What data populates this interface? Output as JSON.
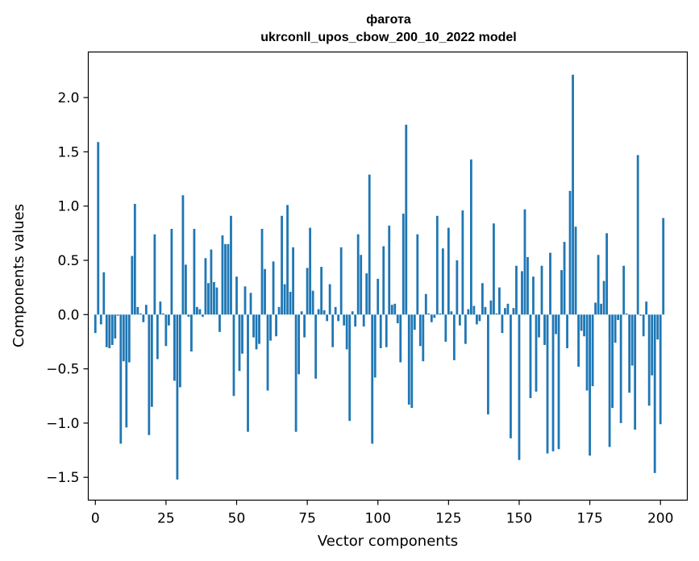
{
  "chart_data": {
    "type": "bar",
    "title": "фагота",
    "subtitle": "ukrconll_upos_cbow_200_10_2022 model",
    "xlabel": "Vector components",
    "ylabel": "Components values",
    "xlim": [
      -2.5,
      209.5
    ],
    "ylim": [
      -1.71,
      2.42
    ],
    "xticks": [
      0,
      25,
      50,
      75,
      100,
      125,
      150,
      175,
      200
    ],
    "yticks": [
      -1.5,
      -1.0,
      -0.5,
      0.0,
      0.5,
      1.0,
      1.5,
      2.0
    ],
    "ytick_labels": [
      "−1.5",
      "−1.0",
      "−0.5",
      "0.0",
      "0.5",
      "1.0",
      "1.5",
      "2.0"
    ],
    "bar_color": "#1f77b4",
    "grid": false,
    "values": [
      -0.17,
      1.59,
      -0.09,
      0.39,
      -0.3,
      -0.31,
      -0.28,
      -0.22,
      -0.01,
      -1.19,
      -0.43,
      -1.04,
      -0.44,
      0.54,
      1.02,
      0.07,
      0.01,
      -0.07,
      0.09,
      -1.11,
      -0.85,
      0.74,
      -0.41,
      0.12,
      0.01,
      -0.29,
      -0.1,
      0.79,
      -0.61,
      -1.52,
      -0.67,
      1.1,
      0.46,
      -0.02,
      -0.34,
      0.79,
      0.07,
      0.05,
      -0.02,
      0.52,
      0.29,
      0.6,
      0.3,
      0.25,
      -0.16,
      0.73,
      0.65,
      0.65,
      0.91,
      -0.75,
      0.35,
      -0.52,
      -0.36,
      0.26,
      -1.08,
      0.2,
      -0.21,
      -0.32,
      -0.27,
      0.79,
      0.42,
      -0.7,
      -0.24,
      0.49,
      -0.2,
      0.07,
      0.91,
      0.28,
      1.01,
      0.21,
      0.62,
      -1.08,
      -0.55,
      0.03,
      -0.21,
      0.43,
      0.8,
      0.22,
      -0.59,
      0.05,
      0.44,
      0.04,
      -0.06,
      0.28,
      -0.3,
      0.07,
      -0.06,
      0.62,
      -0.1,
      -0.32,
      -0.98,
      0.03,
      -0.11,
      0.74,
      0.55,
      -0.11,
      0.38,
      1.29,
      -1.19,
      -0.58,
      0.33,
      -0.31,
      0.63,
      -0.3,
      0.82,
      0.09,
      0.1,
      -0.08,
      -0.44,
      0.93,
      1.75,
      -0.83,
      -0.86,
      -0.14,
      0.74,
      -0.29,
      -0.43,
      0.19,
      0.01,
      -0.07,
      -0.03,
      0.91,
      0.01,
      0.61,
      -0.25,
      0.8,
      0.03,
      -0.42,
      0.5,
      -0.1,
      0.96,
      -0.27,
      0.05,
      1.43,
      0.08,
      -0.09,
      -0.06,
      0.29,
      0.07,
      -0.92,
      0.13,
      0.84,
      0.01,
      0.25,
      -0.17,
      0.06,
      0.1,
      -1.14,
      0.06,
      0.45,
      -1.34,
      0.4,
      0.97,
      0.53,
      -0.77,
      0.35,
      -0.71,
      -0.21,
      0.45,
      -0.28,
      -1.28,
      0.57,
      -1.26,
      -0.18,
      -1.24,
      0.41,
      0.67,
      -0.31,
      1.14,
      2.21,
      0.81,
      -0.48,
      -0.15,
      -0.2,
      -0.7,
      -1.3,
      -0.66,
      0.11,
      0.55,
      0.1,
      0.31,
      0.75,
      -1.22,
      -0.86,
      -0.26,
      -0.05,
      -1.0,
      0.45,
      0.01,
      -0.72,
      -0.47,
      -1.06,
      1.47,
      -0.01,
      -0.2,
      0.12,
      -0.84,
      -0.56,
      -1.46,
      -0.23,
      -1.01,
      0.89
    ]
  }
}
